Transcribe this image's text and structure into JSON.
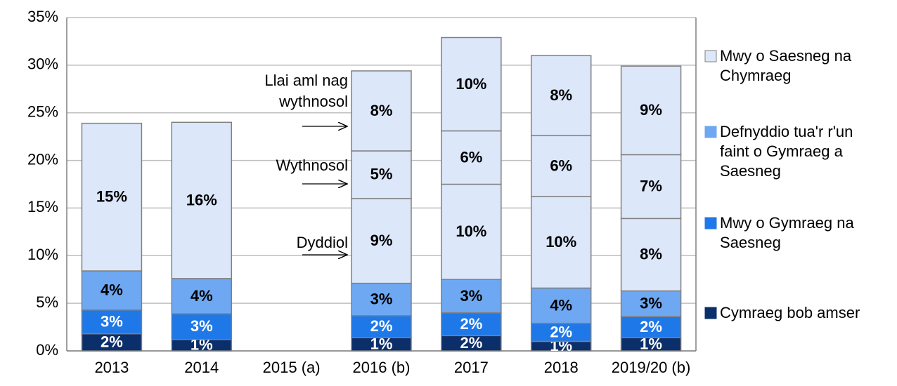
{
  "chart_data": {
    "type": "stacked_bar",
    "categories": [
      "2013",
      "2014",
      "2015 (a)",
      "2016 (b)",
      "2017",
      "2018",
      "2019/20 (b)"
    ],
    "series": [
      {
        "name": "Cymraeg bob amser",
        "color": "#0b2f6b",
        "label_color": "#ffffff",
        "legend": true,
        "values": [
          1.8,
          1.2,
          null,
          1.4,
          1.6,
          1.0,
          1.4
        ],
        "value_labels": [
          "2%",
          "1%",
          null,
          "1%",
          "2%",
          "1%",
          "1%"
        ]
      },
      {
        "name": "Mwy o Gymraeg na Saesneg",
        "color": "#1f78e8",
        "label_color": "#ffffff",
        "legend": true,
        "values": [
          2.5,
          2.7,
          null,
          2.3,
          2.4,
          1.9,
          2.2
        ],
        "value_labels": [
          "3%",
          "3%",
          null,
          "2%",
          "2%",
          "2%",
          "2%"
        ]
      },
      {
        "name": "Defnyddio tua'r r'un faint o Gymraeg a Saesneg",
        "color": "#6ea8f2",
        "label_color": "#000000",
        "legend": true,
        "values": [
          4.1,
          3.7,
          null,
          3.4,
          3.5,
          3.7,
          2.7
        ],
        "value_labels": [
          "4%",
          "4%",
          null,
          "3%",
          "3%",
          "4%",
          "3%"
        ]
      },
      {
        "name": "Mwy o Saesneg na Chymraeg",
        "color": "#dce7fa",
        "label_color": "#000000",
        "legend": true,
        "values": [
          15.5,
          16.4,
          null,
          null,
          null,
          null,
          null
        ],
        "value_labels": [
          "15%",
          "16%",
          null,
          null,
          null,
          null,
          null
        ]
      },
      {
        "name": "Dyddiol",
        "color": "#dce7fa",
        "label_color": "#000000",
        "legend": false,
        "values": [
          null,
          null,
          null,
          8.9,
          10.0,
          9.6,
          7.6
        ],
        "value_labels": [
          null,
          null,
          null,
          "9%",
          "10%",
          "10%",
          "8%"
        ]
      },
      {
        "name": "Wythnosol",
        "color": "#dce7fa",
        "label_color": "#000000",
        "legend": false,
        "values": [
          null,
          null,
          null,
          5.0,
          5.6,
          6.4,
          6.7
        ],
        "value_labels": [
          null,
          null,
          null,
          "5%",
          "6%",
          "6%",
          "7%"
        ]
      },
      {
        "name": "Llai aml nag wythnosol",
        "color": "#dce7fa",
        "label_color": "#000000",
        "legend": false,
        "values": [
          null,
          null,
          null,
          8.4,
          9.8,
          8.4,
          9.3
        ],
        "value_labels": [
          null,
          null,
          null,
          "8%",
          "10%",
          "8%",
          "9%"
        ]
      }
    ],
    "ylim": [
      0,
      35
    ],
    "yticks": [
      {
        "value": 0,
        "label": "0%"
      },
      {
        "value": 5,
        "label": "5%"
      },
      {
        "value": 10,
        "label": "10%"
      },
      {
        "value": 15,
        "label": "15%"
      },
      {
        "value": 20,
        "label": "20%"
      },
      {
        "value": 25,
        "label": "25%"
      },
      {
        "value": 30,
        "label": "30%"
      },
      {
        "value": 35,
        "label": "35%"
      }
    ],
    "grid": true,
    "legend_position": "right"
  }
}
